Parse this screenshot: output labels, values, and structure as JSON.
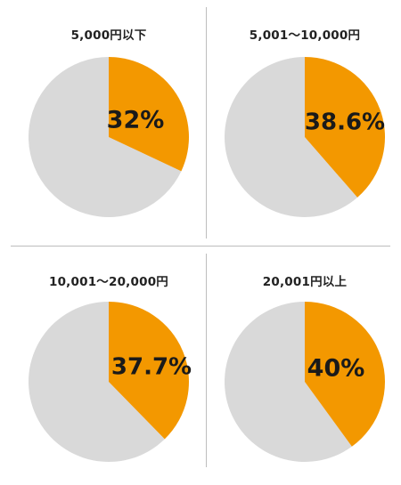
{
  "colors": {
    "accent": "#f39800",
    "rest": "#d9d9d9"
  },
  "chart_data": [
    {
      "type": "pie",
      "title": "5,000円以下",
      "accent_value": 32,
      "remainder": 68,
      "data_label": "32%"
    },
    {
      "type": "pie",
      "title": "5,001～10,000円",
      "accent_value": 38.6,
      "remainder": 61.4,
      "data_label": "38.6%"
    },
    {
      "type": "pie",
      "title": "10,001～20,000円",
      "accent_value": 37.7,
      "remainder": 62.3,
      "data_label": "37.7%"
    },
    {
      "type": "pie",
      "title": "20,001円以上",
      "accent_value": 40,
      "remainder": 60,
      "data_label": "40%"
    }
  ]
}
